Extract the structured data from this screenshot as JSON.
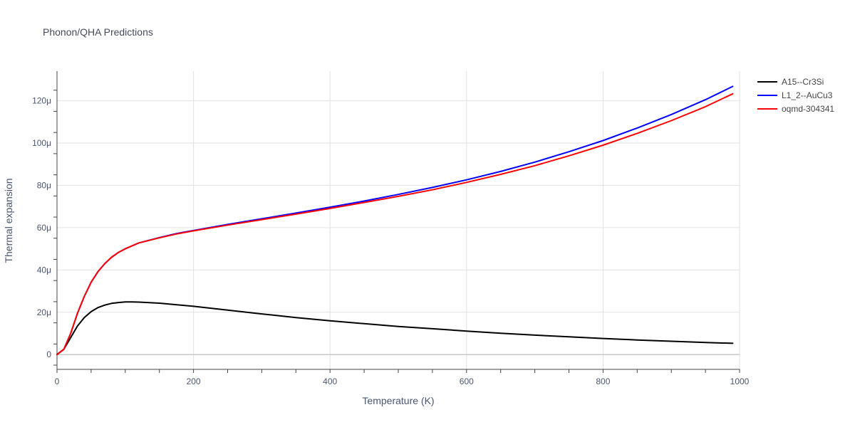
{
  "chart_data": {
    "type": "line",
    "title": "Phonon/QHA Predictions",
    "xlabel": "Temperature (K)",
    "ylabel": "Thermal expansion",
    "xlim": [
      0,
      1000
    ],
    "ylim": [
      -7,
      134
    ],
    "xticks": [
      {
        "value": 0,
        "label": "0"
      },
      {
        "value": 200,
        "label": "200"
      },
      {
        "value": 400,
        "label": "400"
      },
      {
        "value": 600,
        "label": "600"
      },
      {
        "value": 800,
        "label": "800"
      },
      {
        "value": 1000,
        "label": "1000"
      }
    ],
    "yticks": [
      {
        "value": 0,
        "label": "0"
      },
      {
        "value": 20,
        "label": "20μ"
      },
      {
        "value": 40,
        "label": "40μ"
      },
      {
        "value": 60,
        "label": "60μ"
      },
      {
        "value": 80,
        "label": "80μ"
      },
      {
        "value": 100,
        "label": "100μ"
      },
      {
        "value": 120,
        "label": "120μ"
      }
    ],
    "legend_position": "top-right",
    "series": [
      {
        "name": "A15--Cr3Si",
        "color": "#000000",
        "x": [
          0,
          10,
          20,
          30,
          40,
          50,
          60,
          70,
          80,
          90,
          100,
          110,
          120,
          150,
          200,
          250,
          300,
          350,
          400,
          450,
          500,
          550,
          600,
          650,
          700,
          750,
          800,
          850,
          900,
          950,
          990
        ],
        "y": [
          0,
          2.5,
          8,
          13.5,
          17.5,
          20.3,
          22.2,
          23.4,
          24.2,
          24.6,
          24.9,
          24.9,
          24.8,
          24.3,
          22.8,
          21.0,
          19.2,
          17.5,
          16.0,
          14.6,
          13.3,
          12.2,
          11.1,
          10.1,
          9.2,
          8.4,
          7.6,
          6.9,
          6.3,
          5.7,
          5.3
        ]
      },
      {
        "name": "L1_2--AuCu3",
        "color": "#0000ff",
        "x": [
          0,
          10,
          20,
          30,
          40,
          50,
          60,
          70,
          80,
          90,
          100,
          120,
          150,
          175,
          200,
          250,
          300,
          350,
          400,
          450,
          500,
          550,
          600,
          650,
          700,
          750,
          800,
          850,
          900,
          950,
          990
        ],
        "y": [
          0,
          2.5,
          10,
          19.5,
          27.5,
          34.2,
          39.2,
          43.0,
          46.0,
          48.3,
          50.0,
          52.8,
          55.3,
          57.2,
          58.7,
          61.5,
          64.2,
          66.9,
          69.7,
          72.6,
          75.7,
          79.0,
          82.6,
          86.6,
          91.0,
          95.9,
          101.2,
          107.1,
          113.5,
          120.5,
          126.8
        ]
      },
      {
        "name": "oqmd-304341",
        "color": "#ff0000",
        "x": [
          0,
          10,
          20,
          30,
          40,
          50,
          60,
          70,
          80,
          90,
          100,
          120,
          150,
          175,
          200,
          250,
          300,
          350,
          400,
          450,
          500,
          550,
          600,
          650,
          700,
          750,
          800,
          850,
          900,
          950,
          990
        ],
        "y": [
          0,
          2.5,
          10,
          19.5,
          27.5,
          34.2,
          39.2,
          43.0,
          46.0,
          48.3,
          50.0,
          52.8,
          55.2,
          57.0,
          58.5,
          61.2,
          63.8,
          66.4,
          69.1,
          71.9,
          74.8,
          77.9,
          81.4,
          85.2,
          89.3,
          94.0,
          99.0,
          104.6,
          110.6,
          117.2,
          123.3
        ]
      }
    ]
  }
}
